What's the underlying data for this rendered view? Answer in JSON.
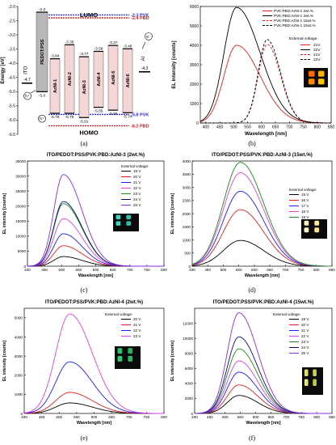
{
  "chart_data": [
    {
      "type": "diagram",
      "panel": "(a)",
      "ylabel": "Energy [eV]",
      "yticks": [
        "-2.0",
        "-2.5",
        "-3.0",
        "-3.5",
        "-4.0",
        "-4.5",
        "-5.0",
        "-5.5",
        "-6.0",
        "-6.5"
      ],
      "ylim": [
        -6.5,
        -2.0
      ],
      "lumo_label": "LUMO",
      "homo_label": "HOMO",
      "ref_levels": [
        {
          "label": "-2.3 PVK",
          "value": -2.3,
          "color": "#2a2aff"
        },
        {
          "label": "-2.4 PBD",
          "value": -2.4,
          "color": "#e01010"
        },
        {
          "label": "-5.8 PVK",
          "value": -5.8,
          "color": "#2a2aff"
        },
        {
          "label": "-6.2 PBD",
          "value": -6.2,
          "color": "#e01010"
        }
      ],
      "layers": [
        {
          "name": "ITO",
          "top": -4.7,
          "bottom": -4.7,
          "top_label": "-4.7",
          "bottom_label": ""
        },
        {
          "name": "PEDOT:PSS",
          "top": -2.2,
          "bottom": -5.0,
          "top_label": "-2.2",
          "bottom_label": "-5.0"
        },
        {
          "name": "AzNI-1",
          "top": -3.84,
          "bottom": -5.76,
          "top_label": "-3.84",
          "bottom_label": "-5.76"
        },
        {
          "name": "AzNI-2",
          "top": -3.35,
          "bottom": -5.76,
          "top_label": "-3.35",
          "bottom_label": "-5.76"
        },
        {
          "name": "AzNI-3",
          "top": -3.77,
          "bottom": -5.91,
          "top_label": "-3.77",
          "bottom_label": "-5.91"
        },
        {
          "name": "AzNI-4",
          "top": -3.58,
          "bottom": -5.55,
          "top_label": "-3.58",
          "bottom_label": "-5.55"
        },
        {
          "name": "AzNI-5",
          "top": -3.37,
          "bottom": -5.65,
          "top_label": "-3.37",
          "bottom_label": "-5.65"
        },
        {
          "name": "AzNI-6",
          "top": -3.49,
          "bottom": -5.74,
          "top_label": "-3.49",
          "bottom_label": "-5.74"
        },
        {
          "name": "Al",
          "top": -4.3,
          "bottom": -4.3,
          "top_label": "-4.3",
          "bottom_label": ""
        }
      ],
      "carriers": [
        "h⁺",
        "h⁺",
        "e⁻"
      ]
    },
    {
      "type": "line",
      "panel": "(b)",
      "xlabel": "Wavelength [nm]",
      "ylabel": "EL intensity [counts]",
      "xlim": [
        380,
        850
      ],
      "ylim": [
        0,
        6000
      ],
      "xticks": [
        400,
        450,
        500,
        550,
        600,
        650,
        700,
        750,
        800,
        850
      ],
      "yticks": [
        0,
        1000,
        2000,
        3000,
        4000,
        5000,
        6000
      ],
      "legend": [
        "PVK:PBD:AzNI-1 2wt.%",
        "PVK:PBD:AzNI-1 2wt.%",
        "PVK:PBD:AzNI-1 15wt.%",
        "PVK:PBD:AzNI-1 15wt.%"
      ],
      "legend_title": "External voltage:",
      "voltages": [
        "21V",
        "22V",
        "21V",
        "22V"
      ],
      "series": [
        {
          "name": "PVK:PBD:AzNI-1 2wt.%",
          "voltage": "21V",
          "peak": 510,
          "amp": 4000,
          "wl": 45,
          "wr": 85,
          "color": "#e02020",
          "dash": false
        },
        {
          "name": "PVK:PBD:AzNI-1 2wt.%",
          "voltage": "22V",
          "peak": 510,
          "amp": 5950,
          "wl": 45,
          "wr": 85,
          "color": "#000000",
          "dash": false
        },
        {
          "name": "PVK:PBD:AzNI-1 15wt.%",
          "voltage": "21V",
          "peak": 620,
          "amp": 4050,
          "wl": 32,
          "wr": 48,
          "color": "#e02020",
          "dash": true
        },
        {
          "name": "PVK:PBD:AzNI-1 15wt.%",
          "voltage": "22V",
          "peak": 620,
          "amp": 4300,
          "wl": 32,
          "wr": 48,
          "color": "#000000",
          "dash": true
        }
      ],
      "photo": [
        "#ff6a00",
        "#ffb000",
        "#ff8a00",
        "#ffc400"
      ]
    },
    {
      "type": "line",
      "panel": "(c)",
      "title": "ITO/PEDOT:PSS/PVK:PBD:AzNI-3 (2wt.%)",
      "xlabel": "Wavelength [nm]",
      "ylabel": "EL intensity [counts]",
      "xlim": [
        400,
        800
      ],
      "ylim": [
        0,
        35000
      ],
      "xticks": [
        400,
        450,
        500,
        550,
        600,
        650,
        700,
        750,
        800
      ],
      "yticks": [
        0,
        5000,
        10000,
        15000,
        20000,
        25000,
        30000,
        35000
      ],
      "legend_title": "External voltage:",
      "series": [
        {
          "name": "19 V",
          "peak": 505,
          "amp": 3200,
          "wl": 28,
          "wr": 55,
          "color": "#000000"
        },
        {
          "name": "20 V",
          "peak": 505,
          "amp": 6800,
          "wl": 28,
          "wr": 55,
          "color": "#e02020"
        },
        {
          "name": "21 V",
          "peak": 505,
          "amp": 10800,
          "wl": 28,
          "wr": 55,
          "color": "#1a1aff"
        },
        {
          "name": "22 V",
          "peak": 505,
          "amp": 15800,
          "wl": 28,
          "wr": 55,
          "color": "#e040e0"
        },
        {
          "name": "23 V",
          "peak": 505,
          "amp": 20800,
          "wl": 28,
          "wr": 55,
          "color": "#1a8a1a"
        },
        {
          "name": "24 V",
          "peak": 505,
          "amp": 21500,
          "wl": 28,
          "wr": 55,
          "color": "#0a0a7a"
        },
        {
          "name": "26 V",
          "peak": 505,
          "amp": 30500,
          "wl": 28,
          "wr": 55,
          "color": "#8a2be2"
        }
      ],
      "photo": [
        "#39d6c0",
        "#2ec4ac",
        "#38d8c4",
        "#2bbfa6"
      ]
    },
    {
      "type": "line",
      "panel": "(d)",
      "title": "ITO/PEDOT:PSS/PVK:PBD:AzNI-3 (15wt.%)",
      "xlabel": "Wavelength [nm]",
      "ylabel": "EL intensity [counts]",
      "xlim": [
        400,
        850
      ],
      "ylim": [
        0,
        4000
      ],
      "xticks": [
        400,
        450,
        500,
        550,
        600,
        650,
        700,
        750,
        800,
        850
      ],
      "yticks": [
        0,
        500,
        1000,
        1500,
        2000,
        2500,
        3000,
        3500,
        4000
      ],
      "legend_title": "External voltage:",
      "series": [
        {
          "name": "15 V",
          "peak": 555,
          "amp": 980,
          "wl": 55,
          "wr": 75,
          "color": "#000000"
        },
        {
          "name": "16 V",
          "peak": 555,
          "amp": 2150,
          "wl": 55,
          "wr": 75,
          "color": "#e02020"
        },
        {
          "name": "17 V",
          "peak": 555,
          "amp": 2850,
          "wl": 55,
          "wr": 75,
          "color": "#1a1aff"
        },
        {
          "name": "18 V",
          "peak": 555,
          "amp": 3550,
          "wl": 55,
          "wr": 75,
          "color": "#e040e0"
        },
        {
          "name": "19 V",
          "peak": 555,
          "amp": 3950,
          "wl": 55,
          "wr": 75,
          "color": "#1a8a1a"
        }
      ],
      "photo": [
        "#fff0c0",
        "#ffe8a0",
        "#fff4d0",
        "#ffe090"
      ]
    },
    {
      "type": "line",
      "panel": "(e)",
      "title": "ITO/PEDOT:PSS/PVK:PBD:AzNI-4 (2wt.%)",
      "xlabel": "Wavelength [nm]",
      "ylabel": "EL intensity [counts]",
      "xlim": [
        400,
        800
      ],
      "ylim": [
        0,
        5500
      ],
      "xticks": [
        400,
        450,
        500,
        550,
        600,
        650,
        700,
        750,
        800
      ],
      "yticks": [
        0,
        1000,
        2000,
        3000,
        4000,
        5000
      ],
      "legend_title": "External voltage:",
      "series": [
        {
          "name": "20 V",
          "peak": 530,
          "amp": 550,
          "wl": 40,
          "wr": 65,
          "color": "#000000"
        },
        {
          "name": "21 V",
          "peak": 530,
          "amp": 1100,
          "wl": 40,
          "wr": 65,
          "color": "#e02020"
        },
        {
          "name": "22 V",
          "peak": 530,
          "amp": 2700,
          "wl": 40,
          "wr": 65,
          "color": "#1a1aff"
        },
        {
          "name": "23 V",
          "peak": 530,
          "amp": 5200,
          "wl": 40,
          "wr": 65,
          "color": "#e040e0"
        }
      ],
      "photo": [
        "#2fbf6a",
        "#27b060",
        "#34c874",
        "#2ab466"
      ]
    },
    {
      "type": "line",
      "panel": "(f)",
      "title": "ITO/PEDOT:PSS/PVK:PBD:AzNI-4 (15wt.%)",
      "xlabel": "Wavelength [nm]",
      "ylabel": "EL intensity [counts]",
      "xlim": [
        400,
        850
      ],
      "ylim": [
        0,
        14000
      ],
      "xticks": [
        400,
        450,
        500,
        550,
        600,
        650,
        700,
        750,
        800,
        850
      ],
      "yticks": [
        0,
        2000,
        4000,
        6000,
        8000,
        10000,
        12000
      ],
      "legend_title": "External voltage:",
      "series": [
        {
          "name": "19 V",
          "peak": 545,
          "amp": 2400,
          "wl": 38,
          "wr": 62,
          "color": "#000000"
        },
        {
          "name": "20 V",
          "peak": 545,
          "amp": 3800,
          "wl": 38,
          "wr": 62,
          "color": "#e02020"
        },
        {
          "name": "21 V",
          "peak": 545,
          "amp": 5500,
          "wl": 38,
          "wr": 62,
          "color": "#1a1aff"
        },
        {
          "name": "22 V",
          "peak": 545,
          "amp": 7000,
          "wl": 38,
          "wr": 62,
          "color": "#e040e0"
        },
        {
          "name": "23 V",
          "peak": 545,
          "amp": 8600,
          "wl": 38,
          "wr": 62,
          "color": "#1a8a1a"
        },
        {
          "name": "24 V",
          "peak": 545,
          "amp": 10200,
          "wl": 38,
          "wr": 62,
          "color": "#0a0a7a"
        },
        {
          "name": "25 V",
          "peak": 545,
          "amp": 13400,
          "wl": 38,
          "wr": 62,
          "color": "#8a2be2"
        }
      ],
      "photo": [
        "#d8e060",
        "#c8d448",
        "#e2e870",
        "#c0cc40"
      ]
    }
  ],
  "captions": [
    "(a)",
    "(b)",
    "(c)",
    "(d)",
    "(e)",
    "(f)"
  ]
}
